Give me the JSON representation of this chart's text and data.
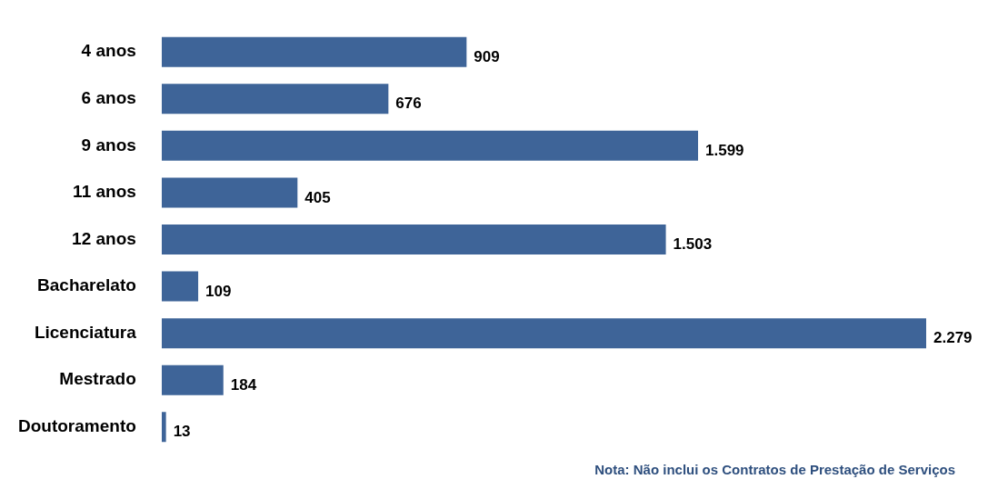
{
  "chart_data": {
    "type": "bar",
    "orientation": "horizontal",
    "categories": [
      "4 anos",
      "6 anos",
      "9 anos",
      "11 anos",
      "12 anos",
      "Bacharelato",
      "Licenciatura",
      "Mestrado",
      "Doutoramento"
    ],
    "values": [
      909,
      676,
      1599,
      405,
      1503,
      109,
      2279,
      184,
      13
    ],
    "value_labels": [
      "909",
      "676",
      "1.599",
      "405",
      "1.503",
      "109",
      "2.279",
      "184",
      "13"
    ],
    "color": "#3e6498",
    "legend": false,
    "annotations": [
      "Nota: Não inclui os Contratos de Prestação de Serviços"
    ]
  }
}
